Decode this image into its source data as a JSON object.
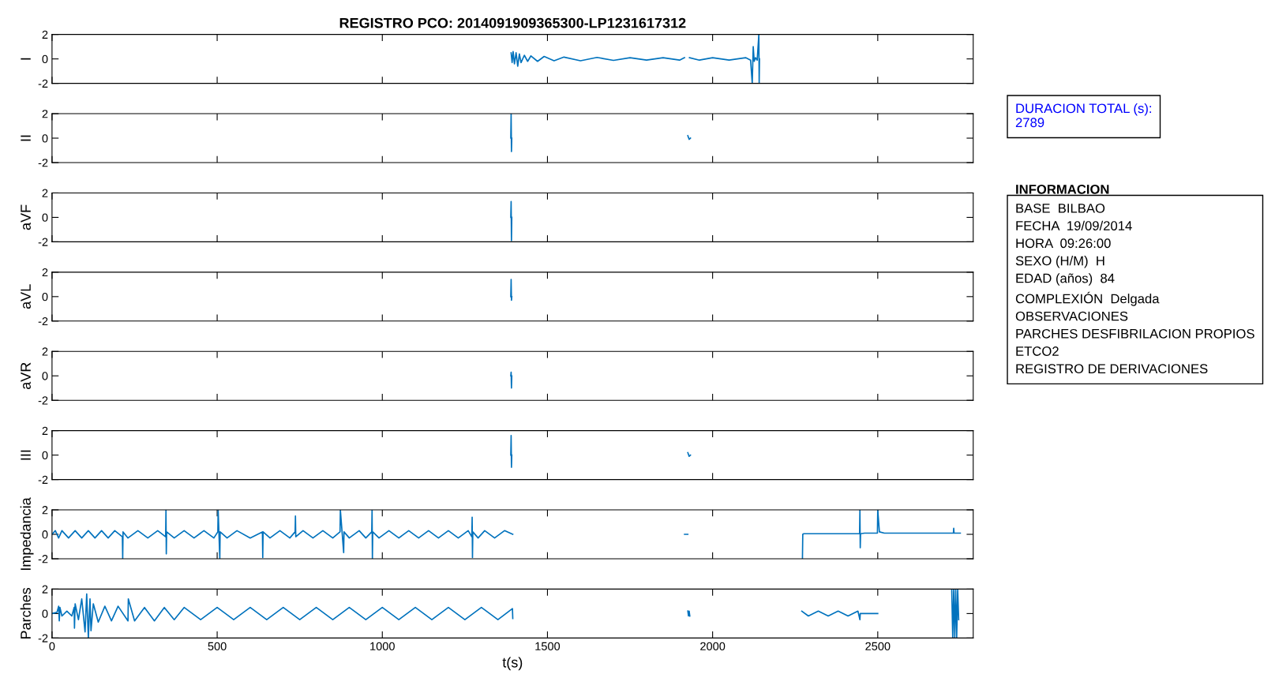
{
  "chart_data": [
    {
      "type": "line",
      "title": "REGISTRO PCO: 2014091909365300-LP1231617312",
      "ylabel": "I",
      "xlim": [
        0,
        2789
      ],
      "xticks": [
        0,
        500,
        1000,
        1500,
        2000,
        2500
      ],
      "ylim": [
        -2,
        2
      ],
      "yticks": [
        -2,
        0,
        2
      ],
      "tick_labels": "y",
      "series": [
        {
          "color": "#0072bd",
          "x": [
            1390,
            1393,
            1396,
            1400,
            1405,
            1410,
            1415,
            1420,
            1430,
            1440,
            1450,
            1470,
            1490,
            1520,
            1550,
            1600,
            1650,
            1700,
            1750,
            1800,
            1850,
            1900,
            1915,
            1920,
            1930,
            1960,
            2000,
            2050,
            2100,
            2115,
            2120,
            2123,
            2126,
            2130,
            2135,
            2140,
            2141,
            2142
          ],
          "values": [
            0.5,
            -0.3,
            0.6,
            -0.4,
            0.5,
            -0.6,
            0.4,
            -0.3,
            0.3,
            -0.2,
            0.25,
            -0.2,
            0.2,
            -0.15,
            0.15,
            -0.15,
            0.12,
            -0.12,
            0.1,
            -0.1,
            0.1,
            -0.1,
            0.1,
            null,
            0.1,
            -0.1,
            0.1,
            -0.1,
            0.1,
            -0.1,
            -2,
            1,
            -0.2,
            0.1,
            -0.1,
            2,
            -2,
            0
          ]
        }
      ]
    },
    {
      "type": "line",
      "ylabel": "II",
      "xlim": [
        0,
        2789
      ],
      "xticks": [
        0,
        500,
        1000,
        1500,
        2000,
        2500
      ],
      "ylim": [
        -2,
        2
      ],
      "yticks": [
        -2,
        0,
        2
      ],
      "tick_labels": "y",
      "series": [
        {
          "color": "#0072bd",
          "x": [
            1389,
            1390,
            1391,
            1392
          ],
          "values": [
            0,
            2,
            -1.1,
            0
          ]
        },
        {
          "color": "#0072bd",
          "x": [
            1925,
            1929,
            1933
          ],
          "values": [
            0.2,
            -0.1,
            0
          ]
        }
      ]
    },
    {
      "type": "line",
      "ylabel": "aVF",
      "xlim": [
        0,
        2789
      ],
      "xticks": [
        0,
        500,
        1000,
        1500,
        2000,
        2500
      ],
      "ylim": [
        -2,
        2
      ],
      "yticks": [
        -2,
        0,
        2
      ],
      "tick_labels": "y",
      "series": [
        {
          "color": "#0072bd",
          "x": [
            1389,
            1390,
            1391,
            1392
          ],
          "values": [
            0,
            1.3,
            -1.9,
            0
          ]
        }
      ]
    },
    {
      "type": "line",
      "ylabel": "aVL",
      "xlim": [
        0,
        2789
      ],
      "xticks": [
        0,
        500,
        1000,
        1500,
        2000,
        2500
      ],
      "ylim": [
        -2,
        2
      ],
      "yticks": [
        -2,
        0,
        2
      ],
      "tick_labels": "y",
      "series": [
        {
          "color": "#0072bd",
          "x": [
            1389,
            1390,
            1391,
            1392
          ],
          "values": [
            0,
            1.4,
            -0.3,
            0
          ]
        }
      ]
    },
    {
      "type": "line",
      "ylabel": "aVR",
      "xlim": [
        0,
        2789
      ],
      "xticks": [
        0,
        500,
        1000,
        1500,
        2000,
        2500
      ],
      "ylim": [
        -2,
        2
      ],
      "yticks": [
        -2,
        0,
        2
      ],
      "tick_labels": "y",
      "series": [
        {
          "color": "#0072bd",
          "x": [
            1389,
            1390,
            1391,
            1392
          ],
          "values": [
            0,
            0.3,
            -1.0,
            0
          ]
        }
      ]
    },
    {
      "type": "line",
      "ylabel": "III",
      "xlim": [
        0,
        2789
      ],
      "xticks": [
        0,
        500,
        1000,
        1500,
        2000,
        2500
      ],
      "ylim": [
        -2,
        2
      ],
      "yticks": [
        -2,
        0,
        2
      ],
      "tick_labels": "y",
      "series": [
        {
          "color": "#0072bd",
          "x": [
            1389,
            1390,
            1391,
            1392
          ],
          "values": [
            0,
            1.6,
            -1.0,
            0
          ]
        },
        {
          "color": "#0072bd",
          "x": [
            1925,
            1929,
            1933
          ],
          "values": [
            0.2,
            -0.1,
            0
          ]
        }
      ]
    },
    {
      "type": "line",
      "ylabel": "Impedancia",
      "xlim": [
        0,
        2789
      ],
      "xticks": [
        0,
        500,
        1000,
        1500,
        2000,
        2500
      ],
      "ylim": [
        -2,
        2
      ],
      "yticks": [
        -2,
        0,
        2
      ],
      "tick_labels": "y",
      "series": [
        {
          "color": "#0072bd",
          "x": [
            0,
            10,
            20,
            30,
            50,
            70,
            90,
            110,
            130,
            150,
            170,
            190,
            213,
            214,
            215,
            230,
            260,
            290,
            320,
            344,
            345,
            346,
            347,
            370,
            400,
            430,
            460,
            490,
            502,
            503,
            508,
            509,
            530,
            560,
            600,
            637,
            638,
            639,
            660,
            690,
            720,
            736,
            737,
            738,
            760,
            790,
            820,
            850,
            872,
            873,
            883,
            884,
            900,
            930,
            950,
            968,
            969,
            970,
            971,
            990,
            1020,
            1050,
            1080,
            1110,
            1140,
            1170,
            1200,
            1230,
            1260,
            1271,
            1272,
            1273,
            1274,
            1290,
            1310,
            1340,
            1370,
            1395,
            1600,
            1915,
            1925,
            1950,
            2272,
            2273,
            2276,
            2285,
            2300,
            2350,
            2400,
            2445,
            2446,
            2447,
            2448,
            2460,
            2480,
            2499,
            2500,
            2505,
            2520,
            2550,
            2600,
            2650,
            2700,
            2729,
            2730,
            2731,
            2750
          ],
          "values": [
            0,
            0.3,
            -0.3,
            0.3,
            -0.3,
            0.3,
            -0.3,
            0.3,
            -0.3,
            0.3,
            -0.3,
            0.3,
            -0.2,
            -2,
            0.2,
            -0.3,
            0.3,
            -0.3,
            0.3,
            -0.2,
            2,
            -1.6,
            0.2,
            -0.3,
            0.3,
            -0.3,
            0.3,
            -0.3,
            0.2,
            2,
            -2,
            0.2,
            -0.3,
            0.3,
            -0.3,
            0.2,
            -1.9,
            0.2,
            -0.3,
            0.3,
            -0.3,
            0.2,
            1.5,
            -0.2,
            0.3,
            -0.3,
            0.3,
            -0.3,
            0.2,
            2,
            -1.5,
            0.2,
            -0.3,
            0.3,
            -0.3,
            0.2,
            2,
            -2,
            0.2,
            -0.3,
            0.3,
            -0.3,
            0.3,
            -0.3,
            0.3,
            -0.3,
            0.3,
            -0.3,
            0.3,
            -0.2,
            1.4,
            -1.9,
            0.2,
            -0.3,
            0.3,
            -0.3,
            0.3,
            0,
            null,
            0,
            0,
            null,
            -2,
            0,
            0.05,
            0.05,
            0.05,
            0.05,
            0.05,
            0.05,
            2,
            -1.1,
            0.05,
            0.1,
            0.1,
            0.1,
            2,
            0.2,
            0.1,
            0.1,
            0.1,
            0.1,
            0.1,
            0.1,
            0.5,
            0.1,
            0.1
          ]
        }
      ]
    },
    {
      "type": "line",
      "ylabel": "Parches",
      "xlabel": "t(s)",
      "xlim": [
        0,
        2789
      ],
      "xticks": [
        0,
        500,
        1000,
        1500,
        2000,
        2500
      ],
      "ylim": [
        -2,
        2
      ],
      "yticks": [
        -2,
        0,
        2
      ],
      "series": [
        {
          "color": "#0072bd",
          "x": [
            0,
            15,
            20,
            22,
            24,
            30,
            45,
            60,
            67,
            68,
            70,
            80,
            90,
            100,
            105,
            110,
            115,
            118,
            125,
            140,
            160,
            180,
            200,
            230,
            231,
            250,
            280,
            310,
            340,
            370,
            400,
            450,
            500,
            550,
            600,
            650,
            700,
            750,
            800,
            850,
            900,
            950,
            1000,
            1050,
            1100,
            1150,
            1200,
            1250,
            1300,
            1350,
            1394,
            1395,
            1600,
            1925,
            1927,
            1929,
            1931,
            1950,
            2270,
            2290,
            2320,
            2350,
            2380,
            2410,
            2440,
            2446,
            2447,
            2470,
            2500,
            2600,
            2724,
            2727,
            2730,
            2733,
            2736,
            2739,
            2742,
            2745
          ],
          "values": [
            0,
            0.1,
            0.6,
            -0.6,
            0.5,
            -0.2,
            0.2,
            -0.2,
            0.5,
            -1.2,
            0.8,
            -0.5,
            1.2,
            -1.5,
            1.6,
            -2,
            1.2,
            -1.4,
            0.8,
            -0.7,
            0.6,
            -0.6,
            0.6,
            -0.6,
            1.2,
            -0.6,
            0.5,
            -0.6,
            0.5,
            -0.5,
            0.5,
            -0.5,
            0.5,
            -0.5,
            0.5,
            -0.5,
            0.5,
            -0.5,
            0.5,
            -0.5,
            0.5,
            -0.5,
            0.5,
            -0.5,
            0.5,
            -0.5,
            0.5,
            -0.5,
            0.5,
            -0.5,
            0.4,
            -0.4,
            null,
            0.2,
            -0.2,
            0.2,
            -0.2,
            null,
            0.2,
            -0.2,
            0.2,
            -0.2,
            0.2,
            -0.2,
            0.2,
            -0.5,
            0,
            0,
            0,
            null,
            2,
            -2,
            2,
            -2,
            2,
            -2,
            2,
            -0.5
          ]
        }
      ]
    },
    {
      "type": "other",
      "annotations": [
        "DURACION TOTAL (s):\n2789",
        "INFORMACION",
        "BASE  BILBAO\nFECHA  19/09/2014\nHORA  09:26:00\nSEXO (H/M)  H\nEDAD (años)  84\nCOMPLEXIÓN  Delgada\nOBSERVACIONES\nPARCHES DESFIBRILACION PROPIOS\nETCO2\nREGISTRO DE DERIVACIONES"
      ]
    }
  ]
}
